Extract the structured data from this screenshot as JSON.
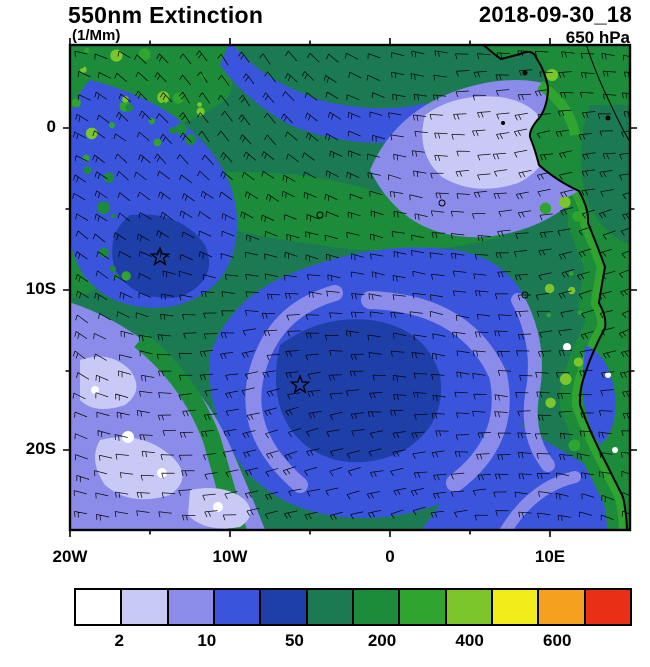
{
  "header": {
    "title": "550nm Extinction",
    "units": "(1/Mm)",
    "datetime": "2018-09-30_18",
    "level": "650 hPa"
  },
  "axes": {
    "y_ticks": [
      "0",
      "10S",
      "20S"
    ],
    "x_ticks": [
      "20W",
      "10W",
      "0",
      "10E"
    ]
  },
  "colorbar": {
    "colors": [
      "#FFFFFF",
      "#C9C9F5",
      "#8B8BE9",
      "#3A55DC",
      "#1E3FA8",
      "#1B7A52",
      "#1D8C3A",
      "#2FA42F",
      "#7CC62B",
      "#F2EB1A",
      "#F5A01E",
      "#EA2F17"
    ],
    "labels": [
      "2",
      "10",
      "50",
      "200",
      "400",
      "600"
    ]
  },
  "chart_data": {
    "type": "heatmap",
    "title": "550nm Extinction",
    "units": "1/Mm",
    "time": "2018-09-30_18",
    "pressure_level": "650 hPa",
    "x_tick_labels": [
      "20W",
      "10W",
      "0",
      "10E"
    ],
    "y_tick_labels": [
      "0",
      "10S",
      "20S"
    ],
    "colorbar_tick_labels": [
      "2",
      "10",
      "50",
      "200",
      "400",
      "600"
    ],
    "palette": [
      "#FFFFFF",
      "#C9C9F5",
      "#8B8BE9",
      "#3A55DC",
      "#1E3FA8",
      "#1B7A52",
      "#1D8C3A",
      "#2FA42F",
      "#7CC62B",
      "#F2EB1A",
      "#F5A01E",
      "#EA2F17"
    ],
    "legend_position": "bottom",
    "grid": false,
    "overlays": [
      "wind-barbs",
      "coastline",
      "star-markers",
      "point-markers"
    ],
    "star_marker_count": 2
  }
}
